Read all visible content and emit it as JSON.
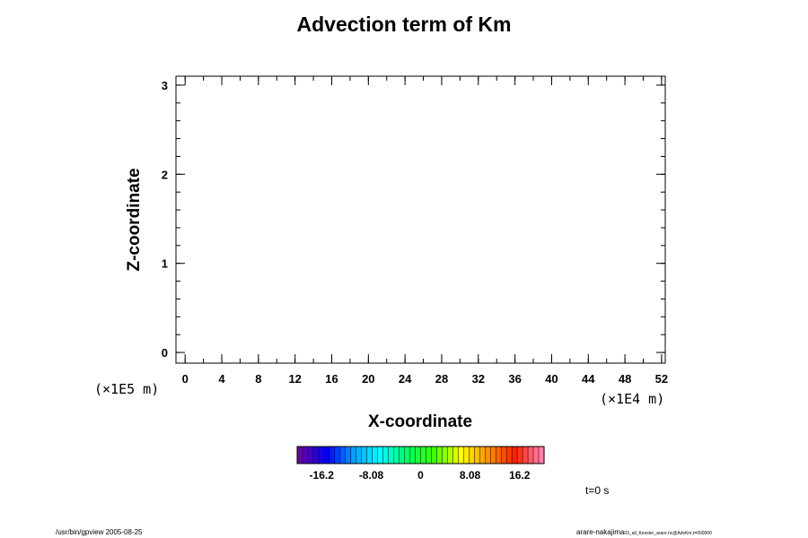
{
  "chart_data": {
    "type": "heatmap",
    "title": "Advection term of Km",
    "xlabel": "X-coordinate",
    "ylabel": "Z-coordinate",
    "x_unit_label": "(×1E4 m)",
    "y_unit_label": "(×1E5 m)",
    "xlim": [
      -1,
      52.4
    ],
    "ylim": [
      -0.12,
      3.1
    ],
    "x_ticks": [
      0,
      4,
      8,
      12,
      16,
      20,
      24,
      28,
      32,
      36,
      40,
      44,
      48,
      52
    ],
    "y_ticks": [
      0,
      1,
      2,
      3
    ],
    "x_minor_step": 2,
    "y_minor_step": 0.2,
    "values": [],
    "colorbar": {
      "range": [
        -20.2,
        20.2
      ],
      "tick_labels": [
        "-16.2",
        "-8.08",
        "0",
        "8.08",
        "16.2"
      ],
      "tick_values": [
        -16.2,
        -8.08,
        0,
        8.08,
        16.2
      ],
      "n_levels": 46,
      "palette": [
        "#6a00aa",
        "#0000ff",
        "#00a0ff",
        "#00ffff",
        "#00ff60",
        "#40ff00",
        "#ffff00",
        "#ff9000",
        "#ff2000",
        "#ff80b0"
      ]
    }
  },
  "time_label": "t=0 s",
  "footer": {
    "left": "/usr/bin/gpview 2005-08-25",
    "right_main": "arare-nakajima",
    "right_small": "03_all_Kessler_arare.nc@AdvKm,t=000000"
  }
}
